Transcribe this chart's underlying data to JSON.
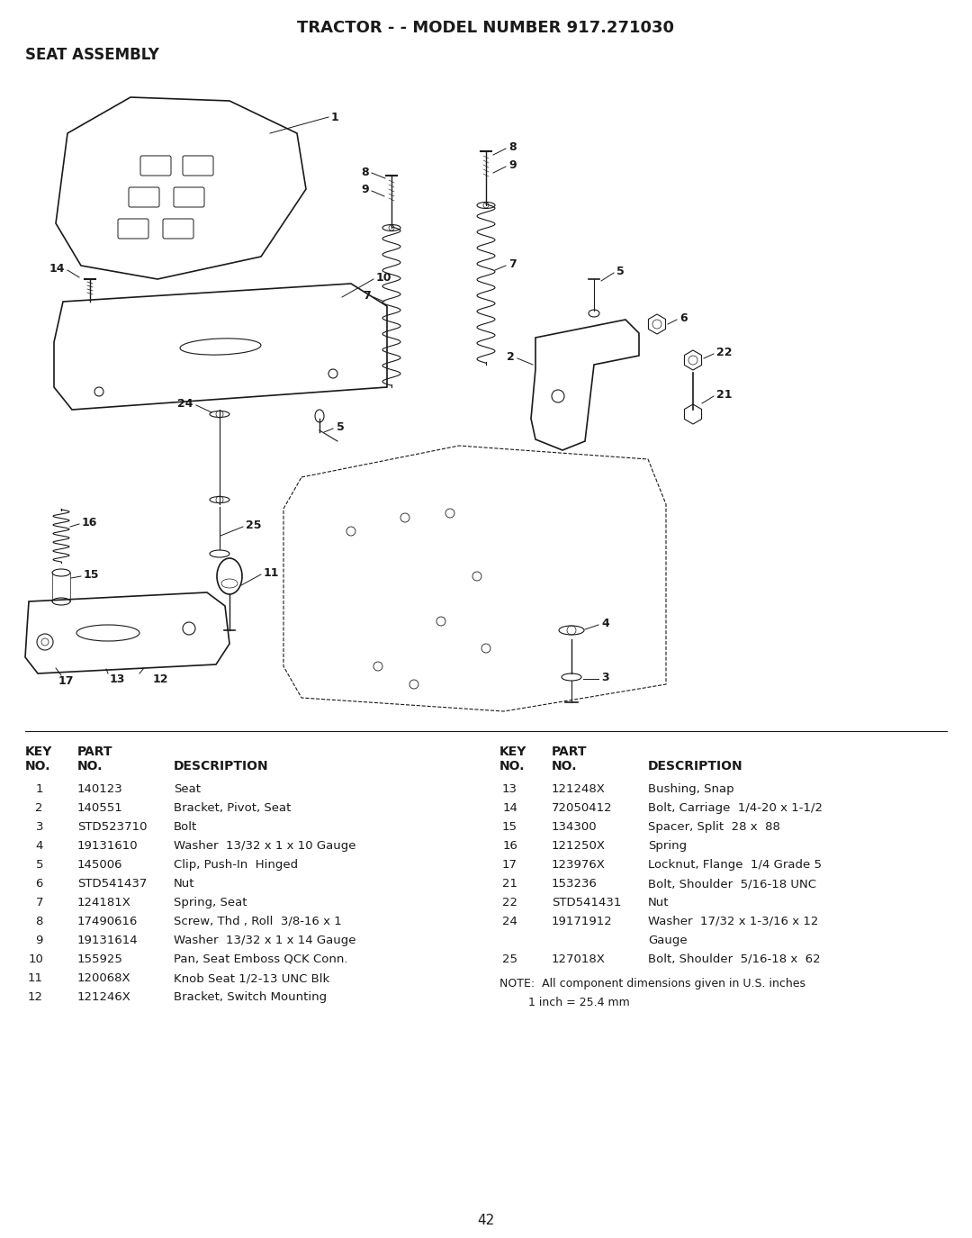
{
  "title": "TRACTOR - - MODEL NUMBER 917.271030",
  "subtitle": "SEAT ASSEMBLY",
  "page_number": "42",
  "background_color": "#ffffff",
  "text_color": "#000000",
  "left_table": {
    "rows": [
      [
        "1",
        "140123",
        "Seat"
      ],
      [
        "2",
        "140551",
        "Bracket, Pivot, Seat"
      ],
      [
        "3",
        "STD523710",
        "Bolt"
      ],
      [
        "4",
        "19131610",
        "Washer  13/32 x 1 x 10 Gauge"
      ],
      [
        "5",
        "145006",
        "Clip, Push-In  Hinged"
      ],
      [
        "6",
        "STD541437",
        "Nut"
      ],
      [
        "7",
        "124181X",
        "Spring, Seat"
      ],
      [
        "8",
        "17490616",
        "Screw, Thd , Roll  3/8-16 x 1"
      ],
      [
        "9",
        "19131614",
        "Washer  13/32 x 1 x 14 Gauge"
      ],
      [
        "10",
        "155925",
        "Pan, Seat Emboss QCK Conn."
      ],
      [
        "11",
        "120068X",
        "Knob Seat 1/2-13 UNC Blk"
      ],
      [
        "12",
        "121246X",
        "Bracket, Switch Mounting"
      ]
    ]
  },
  "right_table": {
    "rows": [
      [
        "13",
        "121248X",
        "Bushing, Snap"
      ],
      [
        "14",
        "72050412",
        "Bolt, Carriage  1/4-20 x 1-1/2"
      ],
      [
        "15",
        "134300",
        "Spacer, Split  28 x  88"
      ],
      [
        "16",
        "121250X",
        "Spring"
      ],
      [
        "17",
        "123976X",
        "Locknut, Flange  1/4 Grade 5"
      ],
      [
        "21",
        "153236",
        "Bolt, Shoulder  5/16-18 UNC"
      ],
      [
        "22",
        "STD541431",
        "Nut"
      ],
      [
        "24",
        "19171912",
        "Washer  17/32 x 1-3/16 x 12 Gauge"
      ],
      [
        "25",
        "127018X",
        "Bolt, Shoulder  5/16-18 x  62"
      ]
    ]
  },
  "note_line1": "NOTE:  All component dimensions given in U.S. inches",
  "note_line2": "        1 inch = 25.4 mm"
}
